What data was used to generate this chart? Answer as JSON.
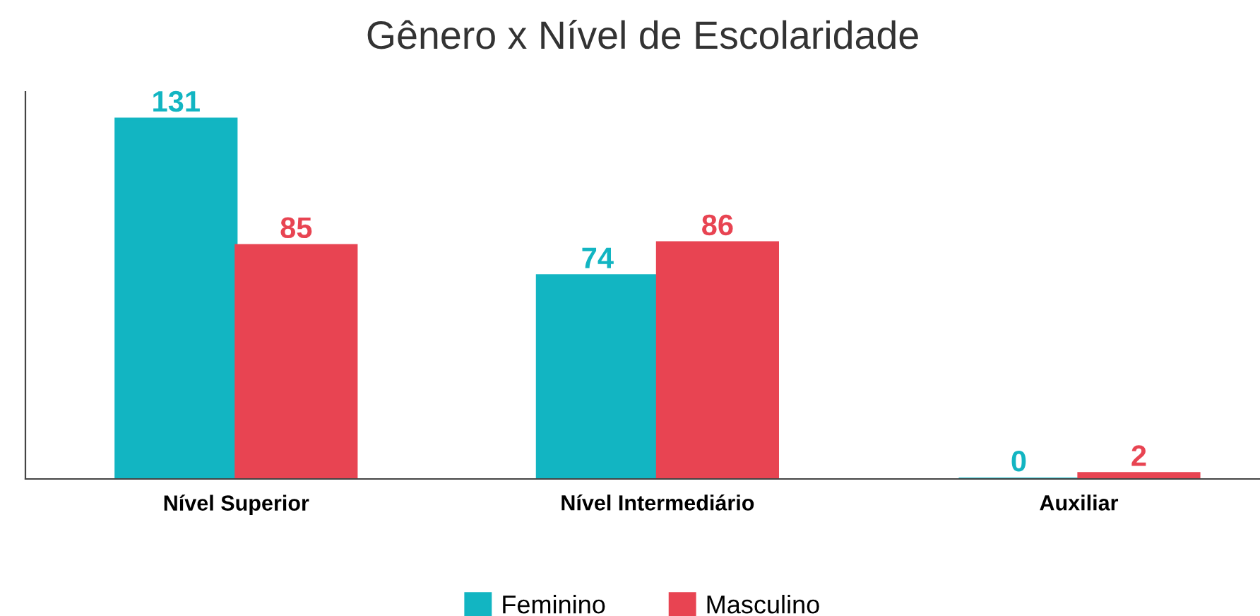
{
  "chart_data": {
    "type": "bar",
    "title": "Gênero x Nível de Escolaridade",
    "categories": [
      "Nível Superior",
      "Nível Intermediário",
      "Auxiliar"
    ],
    "series": [
      {
        "name": "Feminino",
        "color": "#12b5c2",
        "values": [
          131,
          74,
          0
        ]
      },
      {
        "name": "Masculino",
        "color": "#e84452",
        "values": [
          85,
          86,
          2
        ]
      }
    ],
    "data_labels": true,
    "legend": "bottom",
    "grid": false
  }
}
